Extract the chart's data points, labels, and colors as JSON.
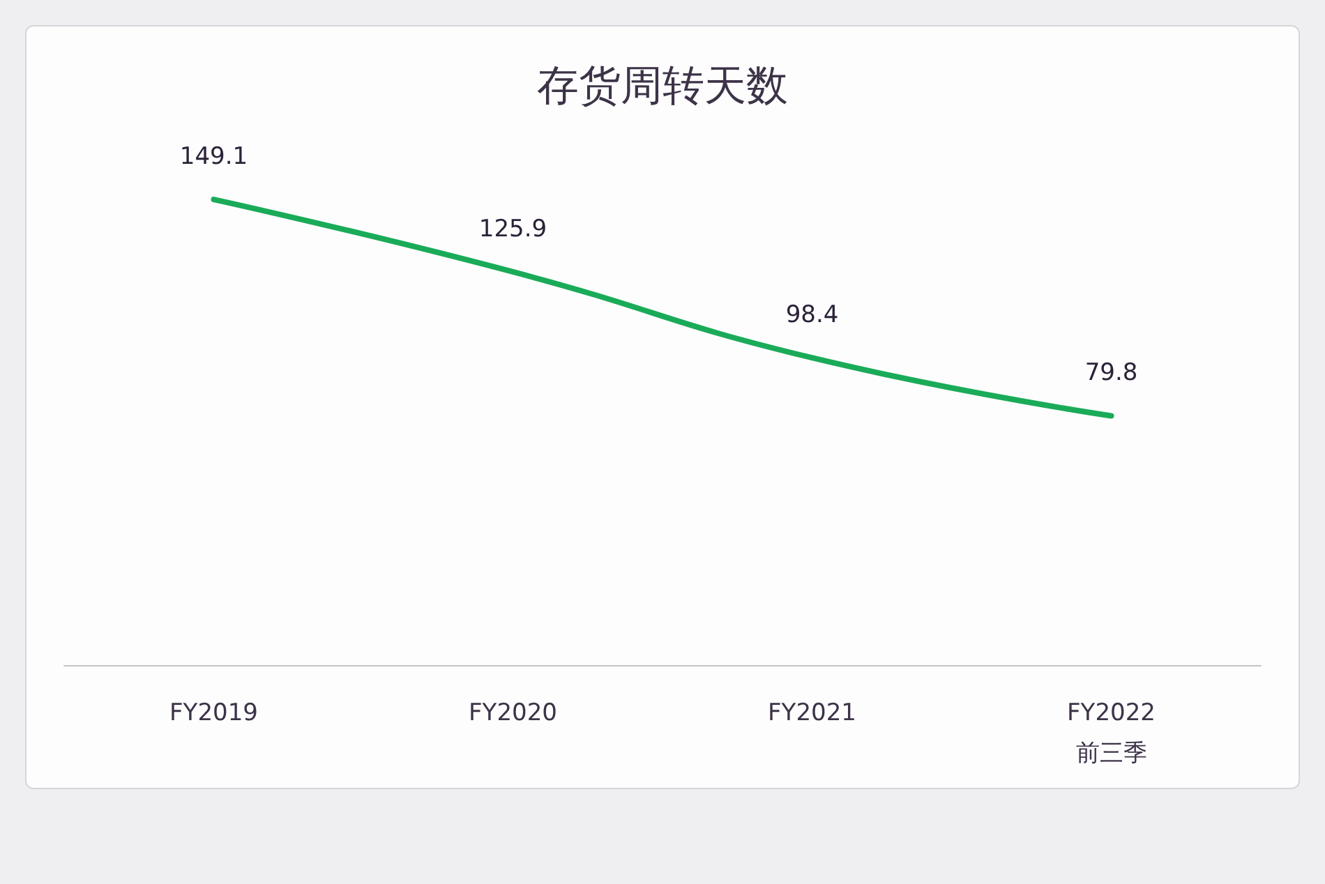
{
  "chart_data": {
    "type": "line",
    "title": "存货周转天数",
    "categories": [
      "FY2019",
      "FY2020",
      "FY2021",
      "FY2022\n前三季"
    ],
    "values": [
      149.1,
      125.9,
      98.4,
      79.8
    ],
    "color": "#1aab58",
    "data_labels": true,
    "marker": "none",
    "line_style": "solid"
  }
}
